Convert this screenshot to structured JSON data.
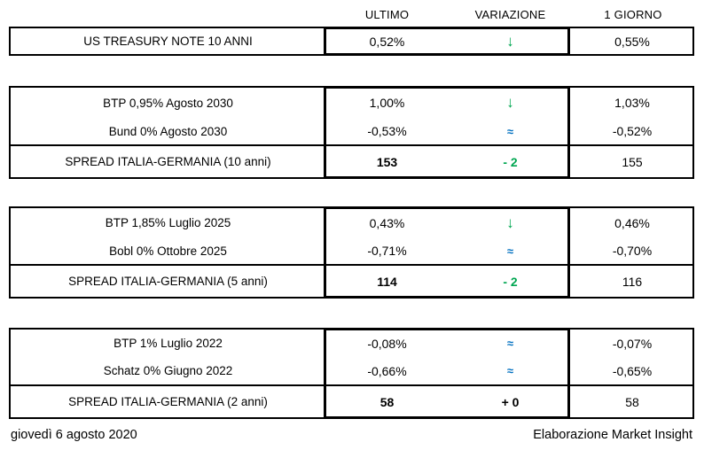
{
  "header": {
    "columns": [
      "ULTIMO",
      "VARIAZIONE",
      "1 GIORNO"
    ]
  },
  "colors": {
    "positive_green": "#00A651",
    "neutral_blue": "#0070C0",
    "text_black": "#000000",
    "border": "#000000",
    "background": "#ffffff"
  },
  "sections": [
    {
      "name": "us-treasury",
      "rows": [
        {
          "label": "US TREASURY NOTE 10 ANNI",
          "ultimo": "0,52%",
          "variazione": "↓",
          "variazione_icon": "down-arrow",
          "variazione_color": "green",
          "giorno": "0,55%"
        }
      ]
    },
    {
      "name": "italy-germany-10-years",
      "rows": [
        {
          "label": "BTP 0,95% Agosto 2030",
          "ultimo": "1,00%",
          "variazione": "↓",
          "variazione_icon": "down-arrow",
          "variazione_color": "green",
          "giorno": "1,03%"
        },
        {
          "label": "Bund 0% Agosto 2030",
          "ultimo": "-0,53%",
          "variazione": "≈",
          "variazione_icon": "approx-equal",
          "variazione_color": "blue",
          "giorno": "-0,52%"
        },
        {
          "label": "SPREAD ITALIA-GERMANIA (10 anni)",
          "ultimo": "153",
          "variazione": "- 2",
          "variazione_icon": "delta-value",
          "variazione_color": "green",
          "giorno": "155"
        }
      ]
    },
    {
      "name": "italy-germany-5-years",
      "rows": [
        {
          "label": "BTP 1,85% Luglio 2025",
          "ultimo": "0,43%",
          "variazione": "↓",
          "variazione_icon": "down-arrow",
          "variazione_color": "green",
          "giorno": "0,46%"
        },
        {
          "label": "Bobl 0% Ottobre 2025",
          "ultimo": "-0,71%",
          "variazione": "≈",
          "variazione_icon": "approx-equal",
          "variazione_color": "blue",
          "giorno": "-0,70%"
        },
        {
          "label": "SPREAD ITALIA-GERMANIA (5 anni)",
          "ultimo": "114",
          "variazione": "- 2",
          "variazione_icon": "delta-value",
          "variazione_color": "green",
          "giorno": "116"
        }
      ]
    },
    {
      "name": "italy-germany-2-years",
      "rows": [
        {
          "label": "BTP 1% Luglio 2022",
          "ultimo": "-0,08%",
          "variazione": "≈",
          "variazione_icon": "approx-equal",
          "variazione_color": "blue",
          "giorno": "-0,07%"
        },
        {
          "label": "Schatz 0% Giugno 2022",
          "ultimo": "-0,66%",
          "variazione": "≈",
          "variazione_icon": "approx-equal",
          "variazione_color": "blue",
          "giorno": "-0,65%"
        },
        {
          "label": "SPREAD ITALIA-GERMANIA (2 anni)",
          "ultimo": "58",
          "variazione": "+ 0",
          "variazione_icon": "delta-value",
          "variazione_color": "black",
          "giorno": "58"
        }
      ]
    }
  ],
  "footer": {
    "date": "giovedì 6 agosto 2020",
    "attribution": "Elaborazione Market Insight"
  }
}
